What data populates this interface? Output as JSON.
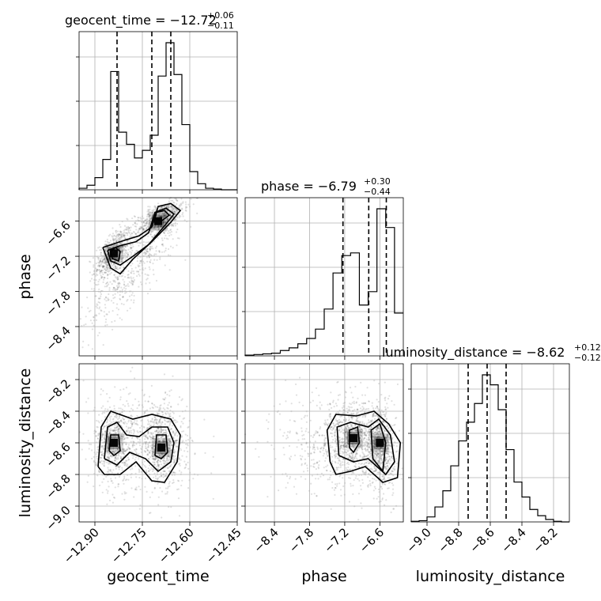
{
  "chart_data": {
    "type": "corner",
    "parameters": [
      "geocent_time",
      "phase",
      "luminosity_distance"
    ],
    "axes_labels": {
      "x_bottom": [
        "geocent_time",
        "phase",
        "luminosity_distance"
      ],
      "y_left": [
        "phase",
        "luminosity_distance"
      ]
    },
    "ticks": {
      "geocent_time": {
        "range": [
          -12.95,
          -12.45
        ],
        "values": [
          -12.9,
          -12.75,
          -12.6,
          -12.45
        ],
        "labels": [
          "−12.90",
          "−12.75",
          "−12.60",
          "−12.45"
        ]
      },
      "phase": {
        "range": [
          -8.9,
          -6.2
        ],
        "values": [
          -8.4,
          -7.8,
          -7.2,
          -6.6
        ],
        "labels": [
          "−8.4",
          "−7.8",
          "−7.2",
          "−6.6"
        ]
      },
      "luminosity_distance": {
        "range": [
          -9.1,
          -8.1
        ],
        "values": [
          -9.0,
          -8.8,
          -8.6,
          -8.4,
          -8.2
        ],
        "labels": [
          "−9.0",
          "−8.8",
          "−8.6",
          "−8.4",
          "−8.2"
        ]
      }
    },
    "titles": {
      "geocent_time": {
        "text": "geocent_time = −12.72",
        "plus": "+0.06",
        "minus": "−0.11"
      },
      "phase": {
        "text": "phase = −6.79",
        "plus": "+0.30",
        "minus": "−0.44"
      },
      "luminosity_distance": {
        "text": "luminosity_distance = −8.62",
        "plus": "+0.12",
        "minus": "−0.12"
      }
    },
    "histograms": {
      "geocent_time": {
        "edges": [
          -12.95,
          -12.925,
          -12.9,
          -12.875,
          -12.85,
          -12.825,
          -12.8,
          -12.775,
          -12.75,
          -12.725,
          -12.7,
          -12.675,
          -12.65,
          -12.625,
          -12.6,
          -12.575,
          -12.55,
          -12.525,
          -12.5,
          -12.475,
          -12.45
        ],
        "counts": [
          1,
          3,
          8,
          20,
          78,
          38,
          30,
          21,
          26,
          36,
          75,
          97,
          76,
          43,
          12,
          4,
          1,
          0.5,
          0,
          0
        ],
        "quantiles": [
          -12.83,
          -12.72,
          -12.66
        ]
      },
      "phase": {
        "edges": [
          -8.9,
          -8.75,
          -8.6,
          -8.45,
          -8.3,
          -8.15,
          -8.0,
          -7.85,
          -7.7,
          -7.55,
          -7.4,
          -7.25,
          -7.1,
          -6.95,
          -6.8,
          -6.65,
          -6.5,
          -6.35,
          -6.2
        ],
        "counts": [
          0.5,
          1,
          1.5,
          2,
          4,
          6,
          9,
          13,
          20,
          35,
          62,
          75,
          77,
          38,
          48,
          110,
          96,
          32
        ],
        "quantiles": [
          -7.23,
          -6.79,
          -6.49
        ]
      },
      "luminosity_distance": {
        "edges": [
          -9.1,
          -9.05,
          -9.0,
          -8.95,
          -8.9,
          -8.85,
          -8.8,
          -8.75,
          -8.7,
          -8.65,
          -8.6,
          -8.55,
          -8.5,
          -8.45,
          -8.4,
          -8.35,
          -8.3,
          -8.25,
          -8.2,
          -8.15,
          -8.1
        ],
        "counts": [
          0.5,
          1,
          4,
          12,
          25,
          45,
          65,
          80,
          95,
          118,
          110,
          90,
          58,
          32,
          20,
          10,
          5,
          2,
          0.5,
          0
        ],
        "quantiles": [
          -8.74,
          -8.62,
          -8.5
        ]
      }
    },
    "scatter_clusters": {
      "phase_vs_geocent_time": [
        {
          "center": [
            -12.84,
            -7.15
          ],
          "sd": [
            0.03,
            0.22
          ],
          "corr": 0.6,
          "n": 600
        },
        {
          "center": [
            -12.69,
            -6.55
          ],
          "sd": [
            0.035,
            0.15
          ],
          "corr": 0.6,
          "n": 700
        },
        {
          "center": [
            -12.78,
            -7.4
          ],
          "sd": [
            0.08,
            0.55
          ],
          "corr": 0.85,
          "n": 500
        }
      ],
      "luminosity_distance_vs_geocent_time": [
        {
          "center": [
            -12.84,
            -8.6
          ],
          "sd": [
            0.03,
            0.12
          ],
          "corr": 0.0,
          "n": 550
        },
        {
          "center": [
            -12.69,
            -8.62
          ],
          "sd": [
            0.035,
            0.12
          ],
          "corr": -0.2,
          "n": 650
        },
        {
          "center": [
            -12.76,
            -8.6
          ],
          "sd": [
            0.09,
            0.17
          ],
          "corr": 0.0,
          "n": 500
        }
      ],
      "luminosity_distance_vs_phase": [
        {
          "center": [
            -7.05,
            -8.58
          ],
          "sd": [
            0.22,
            0.11
          ],
          "corr": 0.0,
          "n": 600
        },
        {
          "center": [
            -6.6,
            -8.62
          ],
          "sd": [
            0.12,
            0.13
          ],
          "corr": -0.2,
          "n": 700
        },
        {
          "center": [
            -7.3,
            -8.6
          ],
          "sd": [
            0.5,
            0.17
          ],
          "corr": 0.0,
          "n": 600
        }
      ]
    },
    "contours": {
      "phase_vs_geocent_time": [
        [
          [
            -12.875,
            -7.05
          ],
          [
            -12.82,
            -6.95
          ],
          [
            -12.76,
            -6.85
          ],
          [
            -12.72,
            -6.7
          ],
          [
            -12.7,
            -6.35
          ],
          [
            -12.66,
            -6.3
          ],
          [
            -12.63,
            -6.42
          ],
          [
            -12.66,
            -6.62
          ],
          [
            -12.72,
            -6.95
          ],
          [
            -12.78,
            -7.25
          ],
          [
            -12.82,
            -7.5
          ],
          [
            -12.85,
            -7.4
          ],
          [
            -12.875,
            -7.05
          ]
        ],
        [
          [
            -12.86,
            -7.1
          ],
          [
            -12.82,
            -7.02
          ],
          [
            -12.77,
            -6.95
          ],
          [
            -12.73,
            -6.8
          ],
          [
            -12.71,
            -6.45
          ],
          [
            -12.675,
            -6.38
          ],
          [
            -12.65,
            -6.48
          ],
          [
            -12.675,
            -6.65
          ],
          [
            -12.73,
            -7.0
          ],
          [
            -12.78,
            -7.2
          ],
          [
            -12.82,
            -7.35
          ],
          [
            -12.85,
            -7.28
          ],
          [
            -12.86,
            -7.1
          ]
        ],
        [
          [
            -12.85,
            -7.12
          ],
          [
            -12.835,
            -7.05
          ],
          [
            -12.82,
            -7.12
          ],
          [
            -12.825,
            -7.28
          ],
          [
            -12.845,
            -7.24
          ],
          [
            -12.85,
            -7.12
          ]
        ],
        [
          [
            -12.705,
            -6.45
          ],
          [
            -12.68,
            -6.42
          ],
          [
            -12.665,
            -6.5
          ],
          [
            -12.69,
            -6.6
          ],
          [
            -12.71,
            -6.55
          ],
          [
            -12.705,
            -6.45
          ]
        ]
      ],
      "luminosity_distance_vs_geocent_time": [
        [
          [
            -12.89,
            -8.75
          ],
          [
            -12.88,
            -8.5
          ],
          [
            -12.85,
            -8.4
          ],
          [
            -12.78,
            -8.45
          ],
          [
            -12.72,
            -8.42
          ],
          [
            -12.66,
            -8.45
          ],
          [
            -12.63,
            -8.55
          ],
          [
            -12.64,
            -8.72
          ],
          [
            -12.68,
            -8.85
          ],
          [
            -12.72,
            -8.84
          ],
          [
            -12.77,
            -8.72
          ],
          [
            -12.82,
            -8.8
          ],
          [
            -12.87,
            -8.8
          ],
          [
            -12.89,
            -8.75
          ]
        ],
        [
          [
            -12.87,
            -8.7
          ],
          [
            -12.86,
            -8.5
          ],
          [
            -12.83,
            -8.47
          ],
          [
            -12.8,
            -8.55
          ],
          [
            -12.76,
            -8.56
          ],
          [
            -12.72,
            -8.5
          ],
          [
            -12.67,
            -8.5
          ],
          [
            -12.65,
            -8.6
          ],
          [
            -12.66,
            -8.72
          ],
          [
            -12.7,
            -8.78
          ],
          [
            -12.74,
            -8.7
          ],
          [
            -12.79,
            -8.66
          ],
          [
            -12.83,
            -8.74
          ],
          [
            -12.87,
            -8.7
          ]
        ],
        [
          [
            -12.855,
            -8.65
          ],
          [
            -12.85,
            -8.55
          ],
          [
            -12.825,
            -8.55
          ],
          [
            -12.82,
            -8.65
          ],
          [
            -12.84,
            -8.68
          ],
          [
            -12.855,
            -8.65
          ]
        ],
        [
          [
            -12.71,
            -8.68
          ],
          [
            -12.705,
            -8.55
          ],
          [
            -12.675,
            -8.55
          ],
          [
            -12.67,
            -8.66
          ],
          [
            -12.69,
            -8.7
          ],
          [
            -12.71,
            -8.68
          ]
        ]
      ],
      "luminosity_distance_vs_phase": [
        [
          [
            -7.45,
            -8.72
          ],
          [
            -7.5,
            -8.52
          ],
          [
            -7.35,
            -8.42
          ],
          [
            -7.0,
            -8.43
          ],
          [
            -6.7,
            -8.4
          ],
          [
            -6.45,
            -8.48
          ],
          [
            -6.25,
            -8.6
          ],
          [
            -6.3,
            -8.82
          ],
          [
            -6.55,
            -8.85
          ],
          [
            -6.85,
            -8.75
          ],
          [
            -7.1,
            -8.78
          ],
          [
            -7.35,
            -8.8
          ],
          [
            -7.45,
            -8.72
          ]
        ],
        [
          [
            -7.3,
            -8.68
          ],
          [
            -7.33,
            -8.5
          ],
          [
            -7.1,
            -8.47
          ],
          [
            -6.8,
            -8.5
          ],
          [
            -6.62,
            -8.45
          ],
          [
            -6.42,
            -8.55
          ],
          [
            -6.35,
            -8.72
          ],
          [
            -6.5,
            -8.8
          ],
          [
            -6.8,
            -8.7
          ],
          [
            -7.05,
            -8.72
          ],
          [
            -7.3,
            -8.68
          ]
        ],
        [
          [
            -7.12,
            -8.63
          ],
          [
            -7.12,
            -8.52
          ],
          [
            -6.98,
            -8.5
          ],
          [
            -6.95,
            -8.6
          ],
          [
            -7.05,
            -8.66
          ],
          [
            -7.12,
            -8.63
          ]
        ],
        [
          [
            -6.72,
            -8.7
          ],
          [
            -6.75,
            -8.52
          ],
          [
            -6.6,
            -8.48
          ],
          [
            -6.5,
            -8.6
          ],
          [
            -6.55,
            -8.78
          ],
          [
            -6.72,
            -8.7
          ]
        ]
      ]
    },
    "peaks": {
      "phase_vs_geocent_time": [
        [
          -12.7,
          -6.6
        ],
        [
          -12.84,
          -7.15
        ]
      ],
      "luminosity_distance_vs_geocent_time": [
        [
          -12.84,
          -8.6
        ],
        [
          -12.69,
          -8.63
        ]
      ],
      "luminosity_distance_vs_phase": [
        [
          -6.6,
          -8.6
        ],
        [
          -7.05,
          -8.57
        ]
      ]
    }
  }
}
